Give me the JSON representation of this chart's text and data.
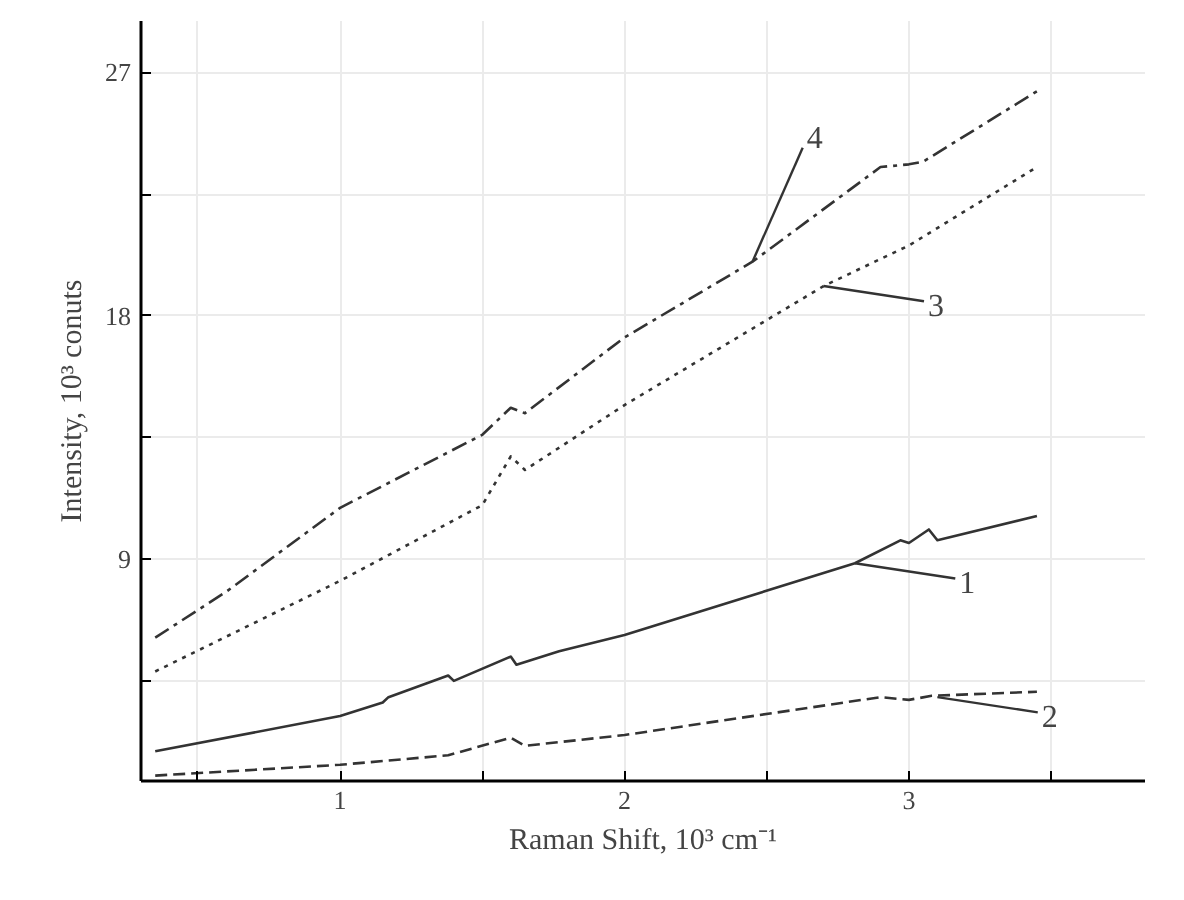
{
  "chart_data": {
    "type": "line",
    "xlabel": "Raman Shift, 10³ cm⁻¹",
    "ylabel": "Intensity, 10³ conuts",
    "xlim": [
      0.3,
      3.83
    ],
    "ylim": [
      0.8,
      28.9
    ],
    "xticks": [
      {
        "value": 0.5,
        "label": null
      },
      1,
      {
        "value": 1.5,
        "label": null
      },
      2,
      {
        "value": 2.5,
        "label": null
      },
      3,
      {
        "value": 3.5,
        "label": null
      }
    ],
    "yticks": [
      {
        "value": 4.5,
        "label": null
      },
      9,
      {
        "value": 13.5,
        "label": null
      },
      18,
      {
        "value": 22.5,
        "label": null
      },
      27
    ],
    "grid": true,
    "marker": "none",
    "series": [
      {
        "color": "#333333",
        "line_style": "dashdot",
        "x": [
          0.35,
          0.6,
          1.0,
          1.5,
          1.6,
          1.65,
          2.0,
          2.45,
          2.9,
          3.0,
          3.05,
          3.45
        ],
        "values": [
          6.1,
          7.8,
          10.9,
          13.6,
          14.6,
          14.4,
          17.2,
          20.0,
          23.5,
          23.6,
          23.7,
          26.3
        ]
      },
      {
        "color": "#333333",
        "line_style": "dotted",
        "x": [
          0.35,
          1.0,
          1.5,
          1.6,
          1.65,
          2.0,
          2.7,
          3.0,
          3.45
        ],
        "values": [
          4.85,
          8.2,
          11.0,
          12.8,
          12.3,
          14.7,
          19.1,
          20.6,
          23.5
        ]
      },
      {
        "color": "#333333",
        "line_style": "solid",
        "x": [
          0.35,
          1.0,
          1.15,
          1.17,
          1.38,
          1.4,
          1.6,
          1.62,
          1.77,
          2.0,
          2.81,
          2.97,
          3.0,
          3.07,
          3.1,
          3.45
        ],
        "values": [
          1.9,
          3.2,
          3.7,
          3.9,
          4.7,
          4.5,
          5.4,
          5.1,
          5.6,
          6.2,
          8.85,
          9.7,
          9.6,
          10.1,
          9.7,
          10.6
        ]
      },
      {
        "color": "#333333",
        "line_style": "dashed",
        "x": [
          0.35,
          1.0,
          1.38,
          1.6,
          1.65,
          2.0,
          2.9,
          3.0,
          3.08,
          3.45
        ],
        "values": [
          1.0,
          1.4,
          1.75,
          2.4,
          2.1,
          2.5,
          3.9,
          3.8,
          3.95,
          4.1
        ]
      }
    ],
    "annotations": [
      {
        "text": "4",
        "x": 2.45,
        "y": 20.0
      },
      {
        "text": "3",
        "x": 2.7,
        "y": 19.1
      },
      {
        "text": "1",
        "x": 2.81,
        "y": 8.85
      },
      {
        "text": "2",
        "x": 3.1,
        "y": 3.9
      }
    ]
  }
}
